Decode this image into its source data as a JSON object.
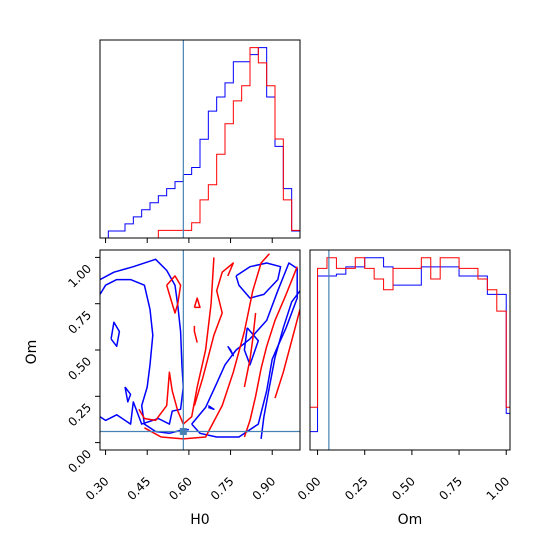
{
  "chart_data": {
    "type": "corner",
    "colors": {
      "red": "#ff0000",
      "blue": "#0000ff",
      "truth": "#4682b4"
    },
    "truth": {
      "H0": 0.58,
      "Om": 0.06
    },
    "panels": {
      "h0_hist": {
        "xlim": [
          0.28,
          1.0
        ],
        "bin_edges": [
          0.28,
          0.31,
          0.34,
          0.37,
          0.4,
          0.43,
          0.46,
          0.49,
          0.52,
          0.55,
          0.58,
          0.61,
          0.64,
          0.67,
          0.7,
          0.73,
          0.76,
          0.79,
          0.82,
          0.85,
          0.88,
          0.91,
          0.94,
          0.97,
          1.0
        ],
        "series": [
          {
            "color": "blue",
            "counts": [
              0,
              1,
              1,
              2,
              3,
              4,
              5,
              6,
              7,
              8,
              9,
              10,
              14,
              18,
              20,
              22,
              25,
              25,
              26,
              27,
              20,
              13,
              7,
              1
            ]
          },
          {
            "color": "red",
            "counts": [
              0,
              0,
              0,
              0,
              0,
              0,
              0,
              1,
              1,
              1,
              1,
              2,
              5,
              7,
              11,
              15,
              18,
              20,
              25,
              23,
              20,
              13,
              5,
              1
            ]
          }
        ]
      },
      "om_hist": {
        "xlim": [
          -0.04,
          1.02
        ],
        "bin_edges": [
          -0.04,
          0.0,
          0.05,
          0.1,
          0.15,
          0.2,
          0.25,
          0.3,
          0.35,
          0.4,
          0.45,
          0.5,
          0.55,
          0.6,
          0.65,
          0.7,
          0.75,
          0.8,
          0.85,
          0.9,
          0.95,
          1.0,
          1.02
        ],
        "series": [
          {
            "color": "blue",
            "counts": [
              0.1,
              0.95,
              0.95,
              0.96,
              1.0,
              1.0,
              1.05,
              1.05,
              1.0,
              0.9,
              0.9,
              0.9,
              1.0,
              1.0,
              1.0,
              1.0,
              0.95,
              0.95,
              0.95,
              0.85,
              0.85,
              0.2
            ]
          },
          {
            "color": "red",
            "counts": [
              0.2,
              0.85,
              0.9,
              0.85,
              0.85,
              0.9,
              0.85,
              0.8,
              0.75,
              0.85,
              0.85,
              0.85,
              0.9,
              0.8,
              0.9,
              0.9,
              0.85,
              0.85,
              0.8,
              0.75,
              0.65,
              0.2
            ]
          }
        ]
      },
      "h0_om": {
        "xlim": [
          0.28,
          1.0
        ],
        "ylim": [
          -0.04,
          1.04
        ],
        "contours": [
          {
            "color": "blue",
            "points": [
              [
                0.28,
                0.88
              ],
              [
                0.33,
                0.92
              ],
              [
                0.4,
                0.95
              ],
              [
                0.48,
                0.99
              ],
              [
                0.52,
                0.93
              ],
              [
                0.55,
                0.85
              ],
              [
                0.56,
                0.74
              ],
              [
                0.57,
                0.6
              ],
              [
                0.575,
                0.42
              ],
              [
                0.58,
                0.3
              ],
              [
                0.57,
                0.18
              ],
              [
                0.54,
                0.17
              ],
              [
                0.53,
                0.1
              ],
              [
                0.49,
                0.13
              ],
              [
                0.43,
                0.1
              ],
              [
                0.4,
                0.22
              ],
              [
                0.39,
                0.1
              ],
              [
                0.34,
                0.15
              ],
              [
                0.3,
                0.12
              ],
              [
                0.28,
                0.14
              ]
            ]
          },
          {
            "color": "blue",
            "points": [
              [
                0.28,
                0.8
              ],
              [
                0.3,
                0.85
              ],
              [
                0.34,
                0.88
              ],
              [
                0.39,
                0.88
              ],
              [
                0.44,
                0.85
              ],
              [
                0.46,
                0.72
              ],
              [
                0.47,
                0.58
              ],
              [
                0.46,
                0.42
              ],
              [
                0.45,
                0.3
              ],
              [
                0.43,
                0.2
              ],
              [
                0.44,
                0.1
              ],
              [
                0.48,
                0.06
              ],
              [
                0.53,
                0.05
              ],
              [
                0.58,
                0.07
              ],
              [
                0.6,
                0.07
              ]
            ]
          },
          {
            "color": "blue",
            "points": [
              [
                0.32,
                0.56
              ],
              [
                0.33,
                0.65
              ],
              [
                0.35,
                0.6
              ],
              [
                0.34,
                0.52
              ],
              [
                0.32,
                0.56
              ]
            ]
          },
          {
            "color": "blue",
            "points": [
              [
                0.37,
                0.3
              ],
              [
                0.39,
                0.26
              ],
              [
                0.38,
                0.22
              ],
              [
                0.37,
                0.3
              ]
            ]
          },
          {
            "color": "blue",
            "points": [
              [
                0.61,
                0.1
              ],
              [
                0.66,
                0.19
              ],
              [
                0.7,
                0.32
              ],
              [
                0.73,
                0.42
              ],
              [
                0.77,
                0.5
              ],
              [
                0.82,
                0.56
              ],
              [
                0.88,
                0.66
              ],
              [
                0.92,
                0.82
              ],
              [
                0.96,
                0.97
              ],
              [
                0.99,
                0.94
              ],
              [
                0.99,
                0.78
              ],
              [
                0.95,
                0.62
              ],
              [
                0.92,
                0.52
              ],
              [
                0.9,
                0.45
              ],
              [
                0.88,
                0.28
              ],
              [
                0.85,
                0.1
              ],
              [
                0.78,
                0.03
              ],
              [
                0.7,
                0.03
              ],
              [
                0.64,
                0.05
              ],
              [
                0.61,
                0.1
              ]
            ]
          },
          {
            "color": "blue",
            "points": [
              [
                0.77,
                0.9
              ],
              [
                0.82,
                0.95
              ],
              [
                0.88,
                0.97
              ],
              [
                0.93,
                0.95
              ],
              [
                0.92,
                0.88
              ],
              [
                0.87,
                0.8
              ],
              [
                0.82,
                0.78
              ],
              [
                0.78,
                0.85
              ],
              [
                0.77,
                0.9
              ]
            ]
          },
          {
            "color": "blue",
            "points": [
              [
                0.86,
                0.02
              ],
              [
                0.87,
                0.14
              ],
              [
                0.89,
                0.3
              ],
              [
                0.91,
                0.46
              ],
              [
                0.94,
                0.62
              ],
              [
                0.97,
                0.76
              ],
              [
                1.0,
                0.82
              ]
            ]
          },
          {
            "color": "blue",
            "points": [
              [
                0.81,
                0.62
              ],
              [
                0.8,
                0.5
              ],
              [
                0.82,
                0.42
              ],
              [
                0.85,
                0.55
              ],
              [
                0.81,
                0.62
              ]
            ]
          },
          {
            "color": "blue",
            "points": [
              [
                0.74,
                0.52
              ],
              [
                0.76,
                0.47
              ],
              [
                0.75,
                0.5
              ],
              [
                0.74,
                0.52
              ]
            ]
          },
          {
            "color": "blue",
            "points": [
              [
                0.67,
                0.2
              ],
              [
                0.69,
                0.18
              ],
              [
                0.67,
                0.19
              ]
            ]
          },
          {
            "color": "red",
            "points": [
              [
                0.42,
                0.18
              ],
              [
                0.44,
                0.13
              ],
              [
                0.48,
                0.12
              ],
              [
                0.52,
                0.2
              ],
              [
                0.53,
                0.38
              ],
              [
                0.54,
                0.28
              ],
              [
                0.56,
                0.17
              ],
              [
                0.58,
                0.1
              ],
              [
                0.61,
                0.14
              ],
              [
                0.63,
                0.3
              ],
              [
                0.66,
                0.5
              ],
              [
                0.68,
                0.75
              ],
              [
                0.69,
                1.0
              ]
            ]
          },
          {
            "color": "red",
            "points": [
              [
                0.44,
                0.08
              ],
              [
                0.5,
                0.03
              ],
              [
                0.58,
                0.02
              ],
              [
                0.66,
                0.03
              ],
              [
                0.72,
                0.2
              ],
              [
                0.76,
                0.38
              ],
              [
                0.8,
                0.6
              ],
              [
                0.83,
                0.82
              ],
              [
                0.86,
                0.97
              ],
              [
                0.89,
                1.02
              ]
            ]
          },
          {
            "color": "red",
            "points": [
              [
                0.52,
                0.85
              ],
              [
                0.55,
                0.9
              ],
              [
                0.57,
                0.85
              ],
              [
                0.56,
                0.75
              ],
              [
                0.55,
                0.7
              ],
              [
                0.53,
                0.8
              ],
              [
                0.52,
                0.85
              ]
            ]
          },
          {
            "color": "red",
            "points": [
              [
                0.62,
                0.73
              ],
              [
                0.63,
                0.78
              ],
              [
                0.64,
                0.73
              ],
              [
                0.62,
                0.73
              ]
            ]
          },
          {
            "color": "red",
            "points": [
              [
                0.62,
                0.63
              ],
              [
                0.62,
                0.6
              ],
              [
                0.63,
                0.54
              ]
            ]
          },
          {
            "color": "red",
            "points": [
              [
                0.62,
                0.2
              ],
              [
                0.65,
                0.35
              ],
              [
                0.69,
                0.58
              ],
              [
                0.72,
                0.7
              ],
              [
                0.7,
                0.82
              ],
              [
                0.72,
                0.92
              ],
              [
                0.76,
                0.97
              ],
              [
                0.74,
                0.9
              ]
            ]
          },
          {
            "color": "red",
            "points": [
              [
                0.8,
                0.03
              ],
              [
                0.82,
                0.12
              ],
              [
                0.84,
                0.25
              ],
              [
                0.86,
                0.4
              ],
              [
                0.88,
                0.52
              ],
              [
                0.91,
                0.66
              ],
              [
                0.95,
                0.8
              ],
              [
                0.99,
                0.95
              ]
            ]
          },
          {
            "color": "red",
            "points": [
              [
                0.8,
                0.3
              ],
              [
                0.82,
                0.45
              ],
              [
                0.83,
                0.56
              ],
              [
                0.84,
                0.7
              ]
            ]
          },
          {
            "color": "red",
            "points": [
              [
                0.91,
                0.24
              ],
              [
                0.94,
                0.38
              ],
              [
                0.97,
                0.55
              ],
              [
                1.0,
                0.72
              ]
            ]
          }
        ]
      }
    },
    "x_ticks_h0": [
      "0.30",
      "0.45",
      "0.60",
      "0.75",
      "0.90"
    ],
    "x_tick_values_h0": [
      0.3,
      0.45,
      0.6,
      0.75,
      0.9
    ],
    "y_ticks_om": [
      "0.00",
      "0.25",
      "0.50",
      "0.75",
      "1.00"
    ],
    "y_tick_values_om": [
      0.0,
      0.25,
      0.5,
      0.75,
      1.0
    ],
    "x_ticks_om": [
      "0.00",
      "0.25",
      "0.50",
      "0.75",
      "1.00"
    ],
    "x_tick_values_om": [
      0.0,
      0.25,
      0.5,
      0.75,
      1.0
    ],
    "xlabel_left": "H0",
    "xlabel_right": "Om",
    "ylabel": "Om"
  }
}
